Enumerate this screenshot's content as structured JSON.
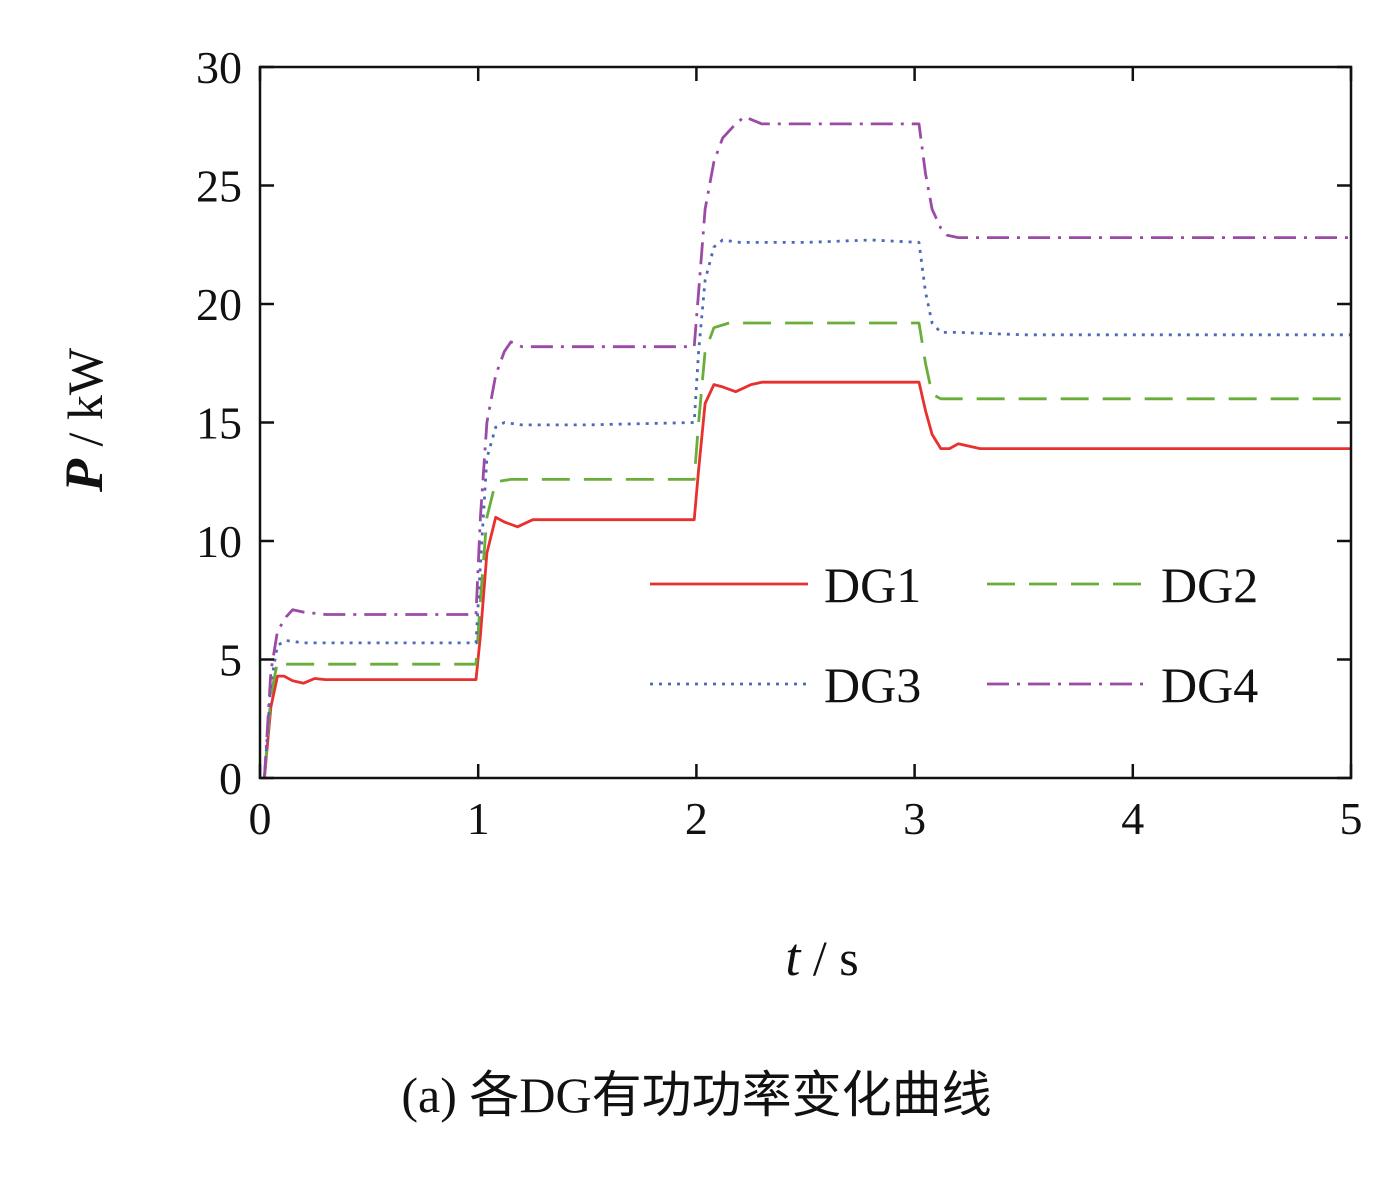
{
  "caption": "(a) 各DG有功功率变化曲线",
  "chart_data": {
    "type": "line",
    "xlabel": {
      "var": "t",
      "unit": " / s"
    },
    "ylabel": {
      "var": "P",
      "unit": " / kW"
    },
    "xlim": [
      0,
      5
    ],
    "ylim": [
      0,
      30
    ],
    "xticks": [
      0,
      1,
      2,
      3,
      4,
      5
    ],
    "yticks": [
      0,
      5,
      10,
      15,
      20,
      25,
      30
    ],
    "grid": false,
    "legend": {
      "placement": "lower-right",
      "columns": 2
    },
    "series": [
      {
        "name": "DG1",
        "color": "#e8302e",
        "dash": "solid",
        "x": [
          0.02,
          0.05,
          0.08,
          0.11,
          0.15,
          0.2,
          0.25,
          0.3,
          0.5,
          0.8,
          0.99,
          1.01,
          1.04,
          1.08,
          1.12,
          1.18,
          1.25,
          1.5,
          1.99,
          2.01,
          2.04,
          2.08,
          2.12,
          2.18,
          2.25,
          2.3,
          2.5,
          2.8,
          3.02,
          3.05,
          3.08,
          3.12,
          3.16,
          3.2,
          3.3,
          3.5,
          4.0,
          4.5,
          5.0
        ],
        "y": [
          0,
          3.0,
          4.3,
          4.3,
          4.1,
          4.0,
          4.2,
          4.15,
          4.15,
          4.15,
          4.15,
          6.0,
          9.5,
          11.0,
          10.8,
          10.6,
          10.9,
          10.9,
          10.9,
          13.0,
          15.8,
          16.6,
          16.5,
          16.3,
          16.6,
          16.7,
          16.7,
          16.7,
          16.7,
          15.5,
          14.5,
          13.9,
          13.9,
          14.1,
          13.9,
          13.9,
          13.9,
          13.9,
          13.9
        ]
      },
      {
        "name": "DG2",
        "color": "#6aae3a",
        "dash": "long-dash",
        "x": [
          0.02,
          0.05,
          0.08,
          0.12,
          0.2,
          0.5,
          0.99,
          1.01,
          1.04,
          1.08,
          1.15,
          1.5,
          1.99,
          2.01,
          2.04,
          2.08,
          2.15,
          2.5,
          2.8,
          3.02,
          3.05,
          3.08,
          3.12,
          3.5,
          4.0,
          5.0
        ],
        "y": [
          0,
          3.5,
          4.9,
          4.8,
          4.8,
          4.8,
          4.8,
          7.5,
          11.0,
          12.5,
          12.6,
          12.6,
          12.6,
          15.0,
          18.0,
          19.0,
          19.2,
          19.2,
          19.2,
          19.2,
          17.5,
          16.2,
          16.0,
          16.0,
          16.0,
          16.0
        ]
      },
      {
        "name": "DG3",
        "color": "#4b6bb8",
        "dash": "dotted",
        "x": [
          0.02,
          0.05,
          0.08,
          0.12,
          0.2,
          0.5,
          0.99,
          1.01,
          1.04,
          1.08,
          1.12,
          1.2,
          1.5,
          1.99,
          2.01,
          2.04,
          2.08,
          2.12,
          2.2,
          2.5,
          2.8,
          3.02,
          3.05,
          3.08,
          3.12,
          3.2,
          3.5,
          4.0,
          5.0
        ],
        "y": [
          0,
          4.0,
          5.6,
          5.8,
          5.7,
          5.7,
          5.7,
          9.0,
          13.5,
          14.8,
          15.0,
          14.9,
          14.9,
          15.0,
          18.0,
          21.0,
          22.4,
          22.7,
          22.6,
          22.6,
          22.7,
          22.6,
          20.5,
          19.2,
          18.8,
          18.8,
          18.7,
          18.7,
          18.7
        ]
      },
      {
        "name": "DG4",
        "color": "#9b4aa6",
        "dash": "dash-dot",
        "x": [
          0.02,
          0.05,
          0.08,
          0.12,
          0.15,
          0.2,
          0.3,
          0.5,
          0.99,
          1.01,
          1.04,
          1.08,
          1.12,
          1.15,
          1.2,
          1.5,
          1.99,
          2.01,
          2.04,
          2.08,
          2.12,
          2.18,
          2.22,
          2.3,
          2.5,
          2.8,
          3.02,
          3.05,
          3.08,
          3.12,
          3.15,
          3.2,
          3.5,
          4.0,
          5.0
        ],
        "y": [
          0,
          4.5,
          6.2,
          6.8,
          7.1,
          7.0,
          6.9,
          6.9,
          6.9,
          11.0,
          15.0,
          17.0,
          18.0,
          18.4,
          18.2,
          18.2,
          18.2,
          20.5,
          24.0,
          26.0,
          27.0,
          27.6,
          27.9,
          27.6,
          27.6,
          27.6,
          27.6,
          25.5,
          24.0,
          23.2,
          22.9,
          22.8,
          22.8,
          22.8,
          22.8
        ]
      }
    ]
  }
}
